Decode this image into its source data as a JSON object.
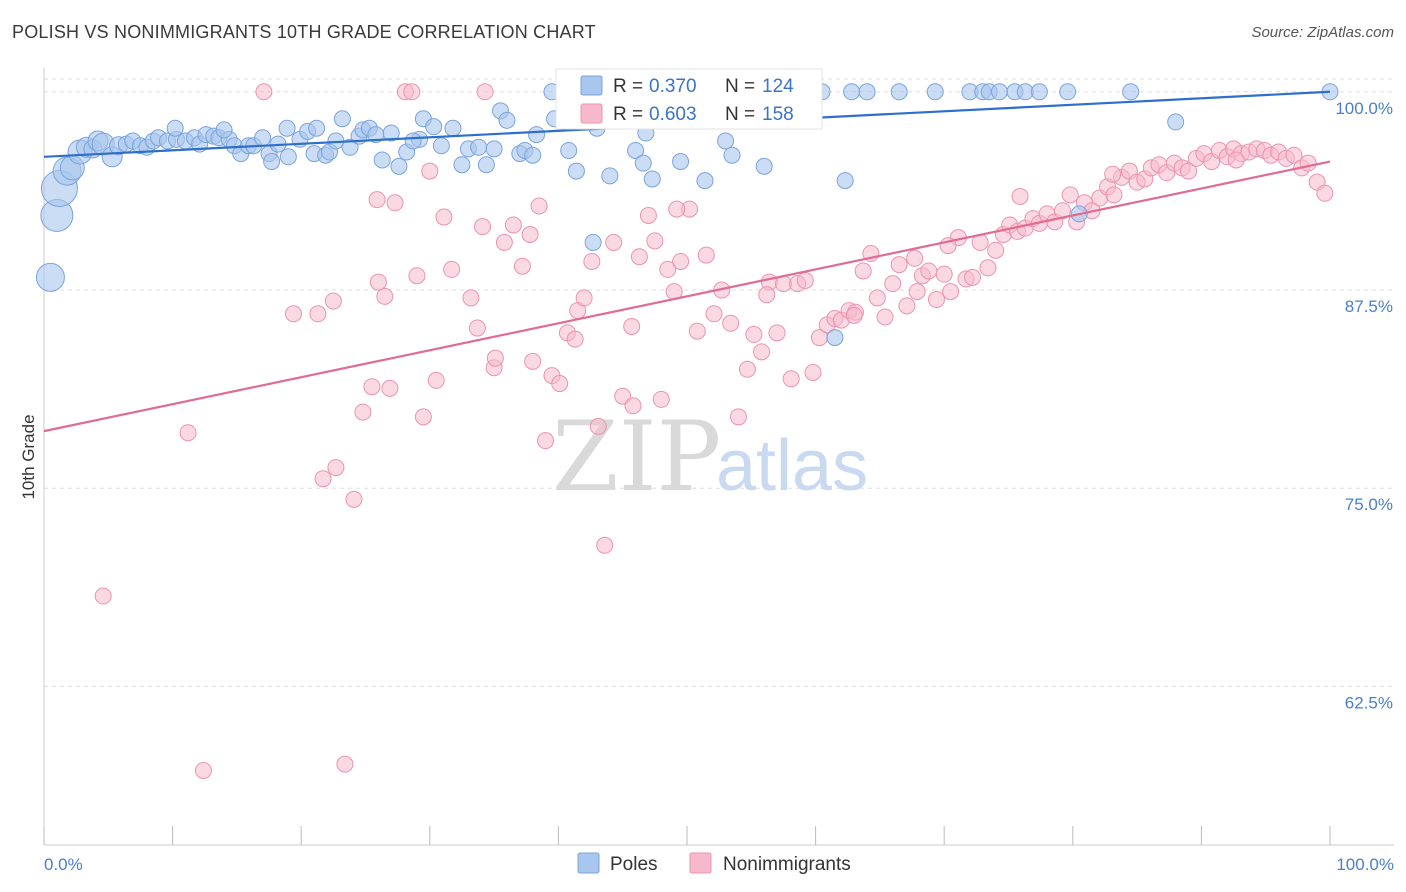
{
  "header": {
    "title": "POLISH VS NONIMMIGRANTS 10TH GRADE CORRELATION CHART",
    "source": "Source: ZipAtlas.com"
  },
  "legend_box": {
    "r_label": "R =",
    "n_label": "N =",
    "poles": {
      "r": "0.370",
      "n": "124"
    },
    "nonimmigrants": {
      "r": "0.603",
      "n": "158"
    }
  },
  "bottom_legend": {
    "poles_label": "Poles",
    "nonimmigrants_label": "Nonimmigrants"
  },
  "watermark": {
    "zip": "ZIP",
    "atlas": "atlas"
  },
  "colors": {
    "poles_fill": "#a9c6ef",
    "poles_stroke": "#7aa4dd",
    "poles_line": "#2e6fcc",
    "non_fill": "#f6b9cc",
    "non_stroke": "#ec93b0",
    "non_line": "#e06b93",
    "tick_text": "#4a7fc9",
    "grid": "#dddddd"
  },
  "chart_data": {
    "type": "scatter",
    "xlabel": "",
    "ylabel": "10th Grade",
    "xlim": [
      0,
      100
    ],
    "ylim": [
      52.5,
      101.5
    ],
    "x_tick_labels": [
      "0.0%",
      "100.0%"
    ],
    "y_ticks": [
      {
        "value": 100.0,
        "label": "100.0%"
      },
      {
        "value": 87.5,
        "label": "87.5%"
      },
      {
        "value": 75.0,
        "label": "75.0%"
      },
      {
        "value": 62.5,
        "label": "62.5%"
      }
    ],
    "grid": true,
    "series": [
      {
        "name": "Poles",
        "trendline": {
          "x": [
            0,
            100
          ],
          "y": [
            95.9,
            100.0
          ]
        },
        "points": [
          [
            0.5,
            88.3,
            14
          ],
          [
            1.0,
            92.2,
            16
          ],
          [
            1.2,
            93.9,
            18
          ],
          [
            1.8,
            95.0,
            14
          ],
          [
            2.2,
            95.2,
            12
          ],
          [
            2.8,
            96.2,
            12
          ],
          [
            3.3,
            96.5,
            10
          ],
          [
            3.8,
            96.4,
            9
          ],
          [
            4.2,
            96.9,
            10
          ],
          [
            4.6,
            96.7,
            11
          ],
          [
            5.3,
            95.9,
            10
          ],
          [
            5.8,
            96.6,
            9
          ],
          [
            6.4,
            96.7,
            8
          ],
          [
            6.9,
            96.9,
            8
          ],
          [
            7.5,
            96.6,
            8
          ],
          [
            8.0,
            96.5,
            8
          ],
          [
            8.5,
            96.9,
            8
          ],
          [
            8.9,
            97.1,
            8
          ],
          [
            9.6,
            96.9,
            8
          ],
          [
            10.3,
            97.0,
            8
          ],
          [
            10.2,
            97.7,
            8
          ],
          [
            11.0,
            96.9,
            8
          ],
          [
            11.7,
            97.1,
            8
          ],
          [
            12.1,
            96.7,
            8
          ],
          [
            12.6,
            97.3,
            8
          ],
          [
            13.2,
            97.2,
            8
          ],
          [
            13.6,
            97.1,
            8
          ],
          [
            14.4,
            97.0,
            8
          ],
          [
            14.0,
            97.6,
            8
          ],
          [
            14.8,
            96.6,
            8
          ],
          [
            15.3,
            96.1,
            8
          ],
          [
            15.9,
            96.6,
            8
          ],
          [
            16.3,
            96.6,
            8
          ],
          [
            17.0,
            97.1,
            8
          ],
          [
            17.5,
            96.1,
            8
          ],
          [
            17.7,
            95.6,
            8
          ],
          [
            18.2,
            96.7,
            8
          ],
          [
            18.9,
            97.7,
            8
          ],
          [
            19.0,
            95.9,
            8
          ],
          [
            19.9,
            97.0,
            8
          ],
          [
            20.5,
            97.5,
            8
          ],
          [
            21.2,
            97.7,
            8
          ],
          [
            21.0,
            96.1,
            8
          ],
          [
            21.9,
            96.0,
            8
          ],
          [
            22.2,
            96.2,
            8
          ],
          [
            22.7,
            96.9,
            8
          ],
          [
            23.2,
            98.3,
            8
          ],
          [
            23.8,
            96.5,
            8
          ],
          [
            24.5,
            97.2,
            8
          ],
          [
            24.8,
            97.6,
            8
          ],
          [
            25.3,
            97.7,
            8
          ],
          [
            25.8,
            97.3,
            8
          ],
          [
            26.3,
            95.7,
            8
          ],
          [
            27.0,
            97.4,
            8
          ],
          [
            27.6,
            95.3,
            8
          ],
          [
            28.2,
            96.2,
            8
          ],
          [
            29.2,
            97.0,
            8
          ],
          [
            28.7,
            96.9,
            8
          ],
          [
            29.5,
            98.3,
            8
          ],
          [
            30.3,
            97.8,
            8
          ],
          [
            30.9,
            96.6,
            8
          ],
          [
            31.8,
            97.7,
            8
          ],
          [
            32.5,
            95.4,
            8
          ],
          [
            33.0,
            96.4,
            8
          ],
          [
            33.8,
            96.5,
            8
          ],
          [
            34.4,
            95.4,
            8
          ],
          [
            35.0,
            96.4,
            8
          ],
          [
            35.5,
            98.8,
            8
          ],
          [
            36.0,
            98.2,
            8
          ],
          [
            37.0,
            96.1,
            8
          ],
          [
            37.4,
            96.3,
            8
          ],
          [
            38.0,
            96.0,
            8
          ],
          [
            38.3,
            97.3,
            8
          ],
          [
            39.5,
            100.0,
            8
          ],
          [
            39.7,
            98.3,
            8
          ],
          [
            40.8,
            96.3,
            8
          ],
          [
            41.4,
            95.0,
            8
          ],
          [
            41.5,
            99.2,
            8
          ],
          [
            42.7,
            90.5,
            8
          ],
          [
            43.0,
            97.7,
            8
          ],
          [
            44.0,
            94.7,
            8
          ],
          [
            44.5,
            99.6,
            8
          ],
          [
            45.2,
            100.0,
            8
          ],
          [
            46.0,
            96.3,
            8
          ],
          [
            46.6,
            95.5,
            8
          ],
          [
            46.8,
            97.4,
            8
          ],
          [
            47.3,
            94.5,
            8
          ],
          [
            48.0,
            99.3,
            8
          ],
          [
            48.4,
            100.0,
            8
          ],
          [
            49.5,
            95.6,
            8
          ],
          [
            50.5,
            100.0,
            8
          ],
          [
            51.4,
            94.4,
            8
          ],
          [
            52.0,
            100.0,
            8
          ],
          [
            53.0,
            96.9,
            8
          ],
          [
            53.5,
            96.0,
            8
          ],
          [
            54.0,
            100.0,
            8
          ],
          [
            54.8,
            100.0,
            8
          ],
          [
            56.0,
            95.3,
            8
          ],
          [
            57.0,
            100.0,
            8
          ],
          [
            58.5,
            99.0,
            8
          ],
          [
            59.0,
            100.0,
            8
          ],
          [
            60.5,
            100.0,
            8
          ],
          [
            61.5,
            84.5,
            8
          ],
          [
            62.3,
            94.4,
            8
          ],
          [
            62.8,
            100.0,
            8
          ],
          [
            64.0,
            100.0,
            8
          ],
          [
            66.5,
            100.0,
            8
          ],
          [
            69.3,
            100.0,
            8
          ],
          [
            72.0,
            100.0,
            8
          ],
          [
            73.0,
            100.0,
            8
          ],
          [
            73.5,
            100.0,
            8
          ],
          [
            74.3,
            100.0,
            8
          ],
          [
            75.5,
            100.0,
            8
          ],
          [
            76.3,
            100.0,
            8
          ],
          [
            77.4,
            100.0,
            8
          ],
          [
            79.6,
            100.0,
            8
          ],
          [
            80.5,
            92.3,
            8
          ],
          [
            84.5,
            100.0,
            8
          ],
          [
            88.0,
            98.1,
            8
          ],
          [
            100.0,
            100.0,
            8
          ]
        ]
      },
      {
        "name": "Nonimmigrants",
        "trendline": {
          "x": [
            0,
            100
          ],
          "y": [
            78.6,
            95.6
          ]
        },
        "points": [
          [
            4.6,
            68.2
          ],
          [
            11.2,
            78.5
          ],
          [
            12.4,
            57.2
          ],
          [
            17.1,
            100.0
          ],
          [
            19.4,
            86.0
          ],
          [
            21.3,
            86.0
          ],
          [
            21.7,
            75.6
          ],
          [
            22.7,
            76.3
          ],
          [
            23.4,
            57.6
          ],
          [
            24.1,
            74.3
          ],
          [
            24.8,
            79.8
          ],
          [
            25.5,
            81.4
          ],
          [
            26.0,
            88.0
          ],
          [
            26.5,
            87.1
          ],
          [
            26.9,
            81.3
          ],
          [
            27.3,
            93.0
          ],
          [
            28.1,
            100.0
          ],
          [
            28.6,
            100.0
          ],
          [
            29.0,
            88.4
          ],
          [
            29.5,
            79.5
          ],
          [
            30.0,
            95.0
          ],
          [
            30.5,
            81.8
          ],
          [
            31.1,
            92.1
          ],
          [
            31.7,
            88.8
          ],
          [
            33.2,
            87.0
          ],
          [
            33.7,
            85.1
          ],
          [
            34.3,
            100.0
          ],
          [
            35.0,
            82.6
          ],
          [
            35.1,
            83.2
          ],
          [
            35.8,
            90.5
          ],
          [
            36.5,
            91.6
          ],
          [
            37.2,
            89.0
          ],
          [
            37.8,
            91.0
          ],
          [
            38.5,
            92.8
          ],
          [
            39.0,
            78.0
          ],
          [
            39.5,
            82.1
          ],
          [
            40.1,
            81.6
          ],
          [
            40.7,
            84.8
          ],
          [
            41.5,
            86.2
          ],
          [
            42.0,
            87.0
          ],
          [
            42.6,
            89.3
          ],
          [
            43.1,
            78.9
          ],
          [
            43.6,
            71.4
          ],
          [
            44.3,
            90.5
          ],
          [
            45.0,
            80.8
          ],
          [
            45.7,
            85.2
          ],
          [
            46.3,
            89.6
          ],
          [
            47.0,
            92.2
          ],
          [
            47.5,
            90.6
          ],
          [
            48.0,
            80.6
          ],
          [
            48.5,
            88.8
          ],
          [
            49.0,
            87.4
          ],
          [
            49.5,
            89.3
          ],
          [
            50.2,
            92.6
          ],
          [
            50.8,
            84.9
          ],
          [
            51.5,
            89.7
          ],
          [
            52.1,
            86.0
          ],
          [
            52.7,
            87.5
          ],
          [
            53.4,
            85.4
          ],
          [
            54.0,
            79.5
          ],
          [
            54.7,
            82.5
          ],
          [
            55.2,
            84.7
          ],
          [
            55.8,
            83.6
          ],
          [
            56.4,
            88.0
          ],
          [
            57.0,
            84.8
          ],
          [
            57.5,
            87.9
          ],
          [
            58.1,
            81.9
          ],
          [
            58.6,
            87.9
          ],
          [
            59.2,
            88.1
          ],
          [
            59.8,
            82.3
          ],
          [
            60.3,
            84.5
          ],
          [
            60.9,
            85.3
          ],
          [
            61.5,
            85.7
          ],
          [
            62.0,
            85.6
          ],
          [
            62.6,
            86.2
          ],
          [
            63.1,
            86.1
          ],
          [
            63.7,
            88.7
          ],
          [
            64.3,
            89.8
          ],
          [
            64.8,
            87.0
          ],
          [
            65.4,
            85.8
          ],
          [
            66.0,
            87.9
          ],
          [
            66.5,
            89.1
          ],
          [
            67.1,
            86.5
          ],
          [
            67.7,
            89.5
          ],
          [
            68.3,
            88.4
          ],
          [
            68.8,
            88.7
          ],
          [
            69.4,
            86.9
          ],
          [
            70.0,
            88.5
          ],
          [
            70.5,
            87.4
          ],
          [
            71.1,
            90.8
          ],
          [
            71.7,
            88.2
          ],
          [
            72.2,
            88.3
          ],
          [
            72.8,
            90.5
          ],
          [
            73.4,
            88.9
          ],
          [
            74.0,
            90.0
          ],
          [
            74.6,
            91.0
          ],
          [
            75.1,
            91.6
          ],
          [
            75.7,
            91.2
          ],
          [
            76.3,
            91.4
          ],
          [
            76.9,
            92.0
          ],
          [
            77.4,
            91.7
          ],
          [
            78.0,
            92.3
          ],
          [
            78.6,
            91.8
          ],
          [
            79.2,
            92.5
          ],
          [
            79.8,
            93.5
          ],
          [
            80.3,
            91.8
          ],
          [
            80.9,
            93.0
          ],
          [
            81.5,
            92.5
          ],
          [
            82.1,
            93.3
          ],
          [
            82.7,
            94.0
          ],
          [
            83.2,
            93.5
          ],
          [
            83.8,
            94.6
          ],
          [
            84.4,
            95.0
          ],
          [
            85.0,
            94.3
          ],
          [
            85.6,
            94.5
          ],
          [
            86.1,
            95.2
          ],
          [
            86.7,
            95.4
          ],
          [
            87.3,
            94.9
          ],
          [
            87.9,
            95.5
          ],
          [
            88.5,
            95.2
          ],
          [
            89.0,
            95.0
          ],
          [
            89.6,
            95.8
          ],
          [
            90.2,
            96.1
          ],
          [
            90.8,
            95.6
          ],
          [
            91.4,
            96.3
          ],
          [
            92.0,
            95.9
          ],
          [
            92.5,
            96.4
          ],
          [
            93.1,
            96.1
          ],
          [
            93.7,
            96.2
          ],
          [
            94.3,
            96.4
          ],
          [
            94.9,
            96.3
          ],
          [
            95.4,
            96.0
          ],
          [
            96.0,
            96.2
          ],
          [
            96.6,
            95.8
          ],
          [
            97.2,
            96.0
          ],
          [
            97.8,
            95.2
          ],
          [
            98.3,
            95.5
          ],
          [
            99.0,
            94.3
          ],
          [
            99.6,
            93.6
          ],
          [
            70.3,
            90.3
          ],
          [
            63.0,
            85.9
          ],
          [
            56.2,
            87.2
          ],
          [
            49.2,
            92.6
          ],
          [
            41.3,
            84.4
          ],
          [
            38.0,
            83.0
          ],
          [
            34.1,
            91.5
          ],
          [
            25.9,
            93.2
          ],
          [
            22.5,
            86.8
          ],
          [
            45.8,
            80.2
          ],
          [
            67.9,
            87.4
          ],
          [
            75.9,
            93.4
          ],
          [
            83.1,
            94.8
          ],
          [
            92.7,
            95.7
          ]
        ]
      }
    ]
  }
}
